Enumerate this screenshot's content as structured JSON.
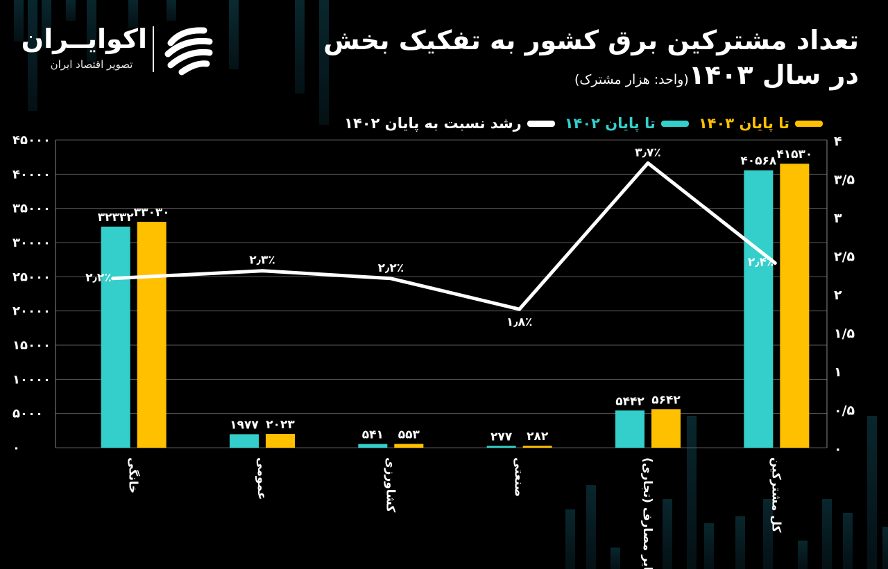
{
  "header": {
    "title_line1": "تعداد مشترکین برق کشور به تفکیک بخش",
    "title_line2": "در سال ۱۴۰۳",
    "unit": "(واحد: هزار مشترک)"
  },
  "brand": {
    "name": "اکوایــران",
    "tagline": "تصویر اقتصاد ایران"
  },
  "legend": [
    {
      "label": "تا پایان ۱۴۰۳",
      "color": "#FFC000"
    },
    {
      "label": "تا پایان ۱۴۰۲",
      "color": "#34CFCB"
    },
    {
      "label": "رشد نسبت به پایان ۱۴۰۲",
      "color": "#FFFFFF"
    }
  ],
  "chart_data": {
    "type": "bar",
    "categories": [
      "خانگی",
      "عمومی",
      "کشاورزی",
      "صنعتی",
      "سایر مصارف (تجاری)",
      "کل مشترکین"
    ],
    "series": [
      {
        "name": "تا پایان ۱۴۰۲",
        "type": "bar",
        "axis": "left",
        "color": "#34CFCB",
        "values": [
          32332,
          1977,
          541,
          277,
          5442,
          40568
        ],
        "labels": [
          "۳۲۳۳۲",
          "۱۹۷۷",
          "۵۴۱",
          "۲۷۷",
          "۵۴۴۲",
          "۴۰۵۶۸"
        ]
      },
      {
        "name": "تا پایان ۱۴۰۳",
        "type": "bar",
        "axis": "left",
        "color": "#FFC000",
        "values": [
          33030,
          2023,
          553,
          282,
          5642,
          41530
        ],
        "labels": [
          "۳۳۰۳۰",
          "۲۰۲۳",
          "۵۵۳",
          "۲۸۲",
          "۵۶۴۲",
          "۴۱۵۳۰"
        ]
      },
      {
        "name": "رشد نسبت به پایان ۱۴۰۲",
        "type": "line",
        "axis": "right",
        "color": "#FFFFFF",
        "values": [
          2.2,
          2.3,
          2.2,
          1.8,
          3.7,
          2.4
        ],
        "labels": [
          "۲٫۲٪",
          "۲٫۳٪",
          "۲٫۲٪",
          "۱٫۸٪",
          "۳٫۷٪",
          "۲٫۴٪"
        ]
      }
    ],
    "y_left": {
      "min": 0,
      "max": 45000,
      "ticks": [
        0,
        5000,
        10000,
        15000,
        20000,
        25000,
        30000,
        35000,
        40000,
        45000
      ],
      "tick_labels": [
        "۰",
        "۵۰۰۰",
        "۱۰۰۰۰",
        "۱۵۰۰۰",
        "۲۰۰۰۰",
        "۲۵۰۰۰",
        "۳۰۰۰۰",
        "۳۵۰۰۰",
        "۴۰۰۰۰",
        "۴۵۰۰۰"
      ]
    },
    "y_right": {
      "min": 0,
      "max": 4,
      "ticks": [
        0,
        0.5,
        1,
        1.5,
        2,
        2.5,
        3,
        3.5,
        4
      ],
      "tick_labels": [
        "۰",
        "۰/۵",
        "۱",
        "۱/۵",
        "۲",
        "۲/۵",
        "۳",
        "۳/۵",
        "۴"
      ]
    },
    "grid": true
  }
}
